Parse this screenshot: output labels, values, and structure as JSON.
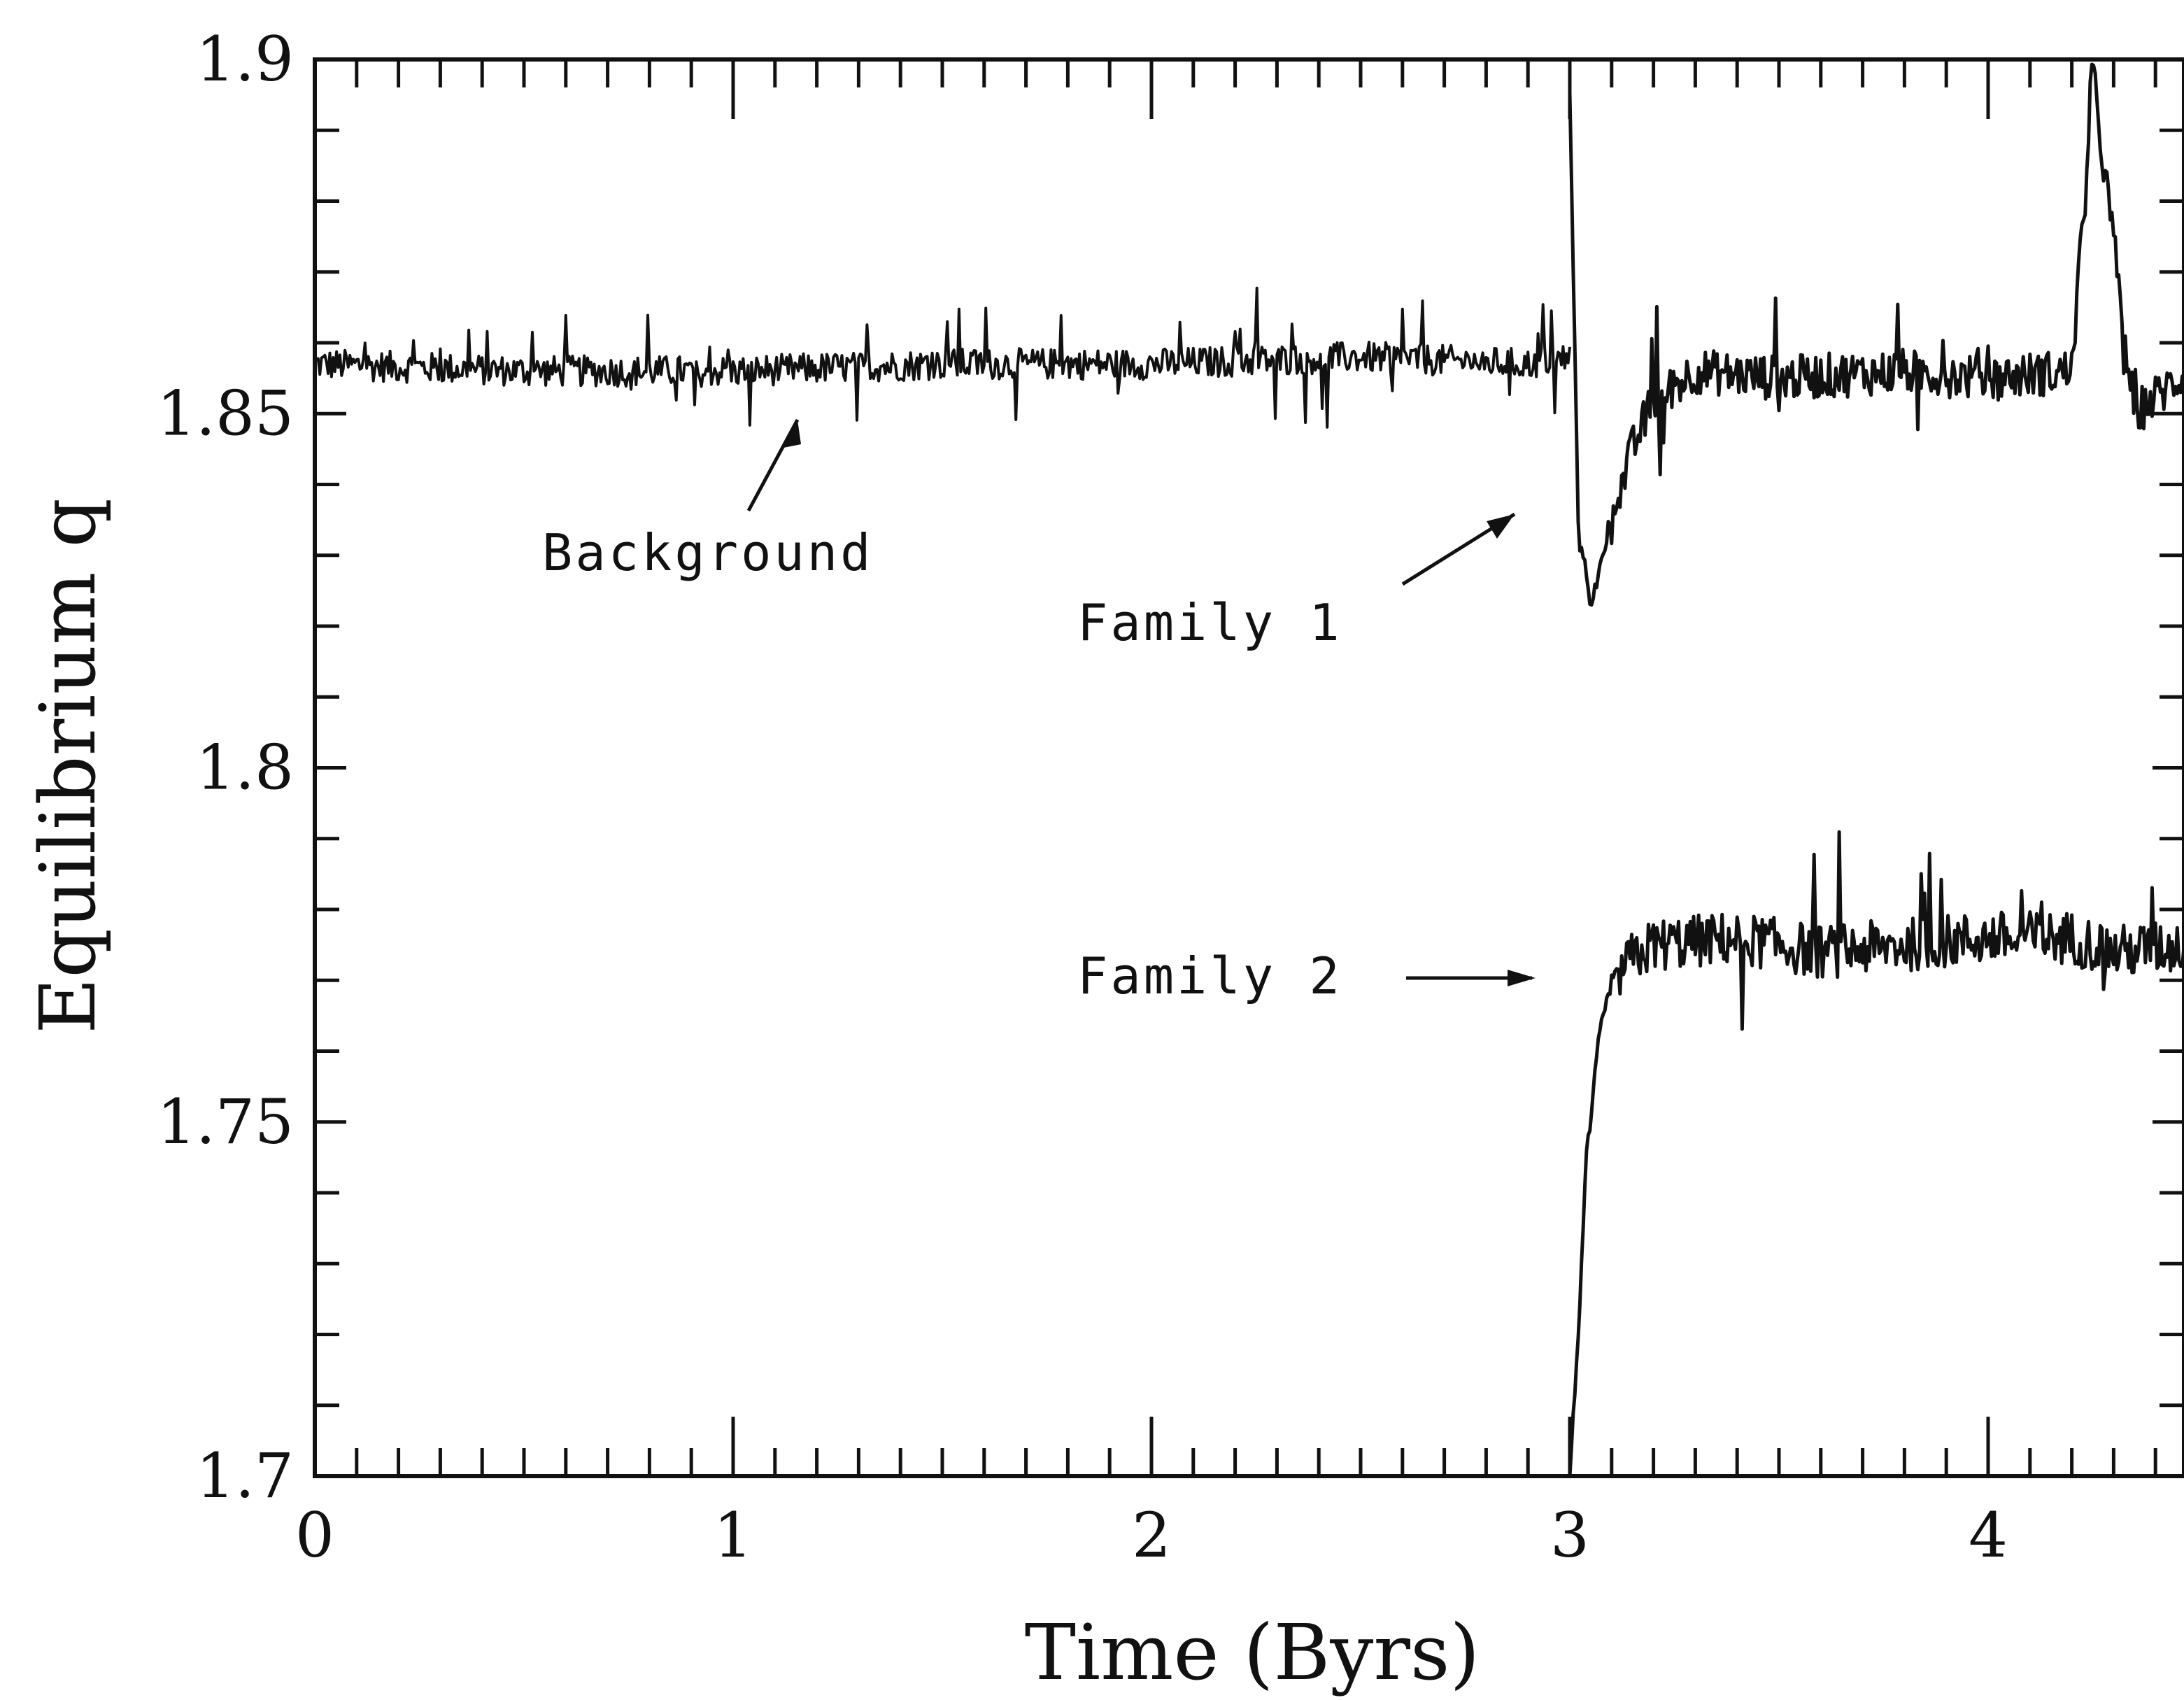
{
  "chart_data": {
    "type": "line",
    "title": "",
    "xlabel": "Time (Byrs)",
    "ylabel": "Equilibrium q",
    "xlim": [
      0,
      4.5
    ],
    "ylim": [
      1.7,
      1.9
    ],
    "x_ticks": [
      "0",
      "1",
      "2",
      "3",
      "4"
    ],
    "y_ticks": [
      "1.7",
      "1.75",
      "1.8",
      "1.85",
      "1.9"
    ],
    "grid": false,
    "annotations": [
      {
        "text": "Background",
        "target": [
          1.15,
          1.85
        ]
      },
      {
        "text": "Family 1",
        "target": [
          3.08,
          1.838
        ]
      },
      {
        "text": "Family 2",
        "target": [
          3.1,
          1.772
        ]
      }
    ],
    "series": [
      {
        "style": "noisy",
        "x": [
          0,
          0.5,
          1.0,
          1.5,
          2.0,
          2.5,
          2.9,
          3.0
        ],
        "y": [
          1.857,
          1.856,
          1.856,
          1.857,
          1.857,
          1.858,
          1.857,
          1.858
        ]
      },
      {
        "style": "noisy",
        "x": [
          3.0,
          3.02,
          3.05,
          3.1,
          3.15,
          3.2,
          3.3,
          3.5,
          3.8,
          4.0,
          4.2,
          4.25,
          4.35,
          4.5
        ],
        "y": [
          1.895,
          1.835,
          1.823,
          1.835,
          1.845,
          1.852,
          1.856,
          1.855,
          1.856,
          1.855,
          1.856,
          1.898,
          1.85,
          1.857
        ]
      },
      {
        "style": "noisy",
        "x": [
          3.0,
          3.02,
          3.04,
          3.07,
          3.1,
          3.15,
          3.2,
          3.4,
          3.6,
          3.8,
          4.0,
          4.2,
          4.3,
          4.5
        ],
        "y": [
          1.7,
          1.72,
          1.745,
          1.762,
          1.77,
          1.773,
          1.775,
          1.776,
          1.774,
          1.775,
          1.776,
          1.776,
          1.774,
          1.775
        ]
      }
    ]
  }
}
